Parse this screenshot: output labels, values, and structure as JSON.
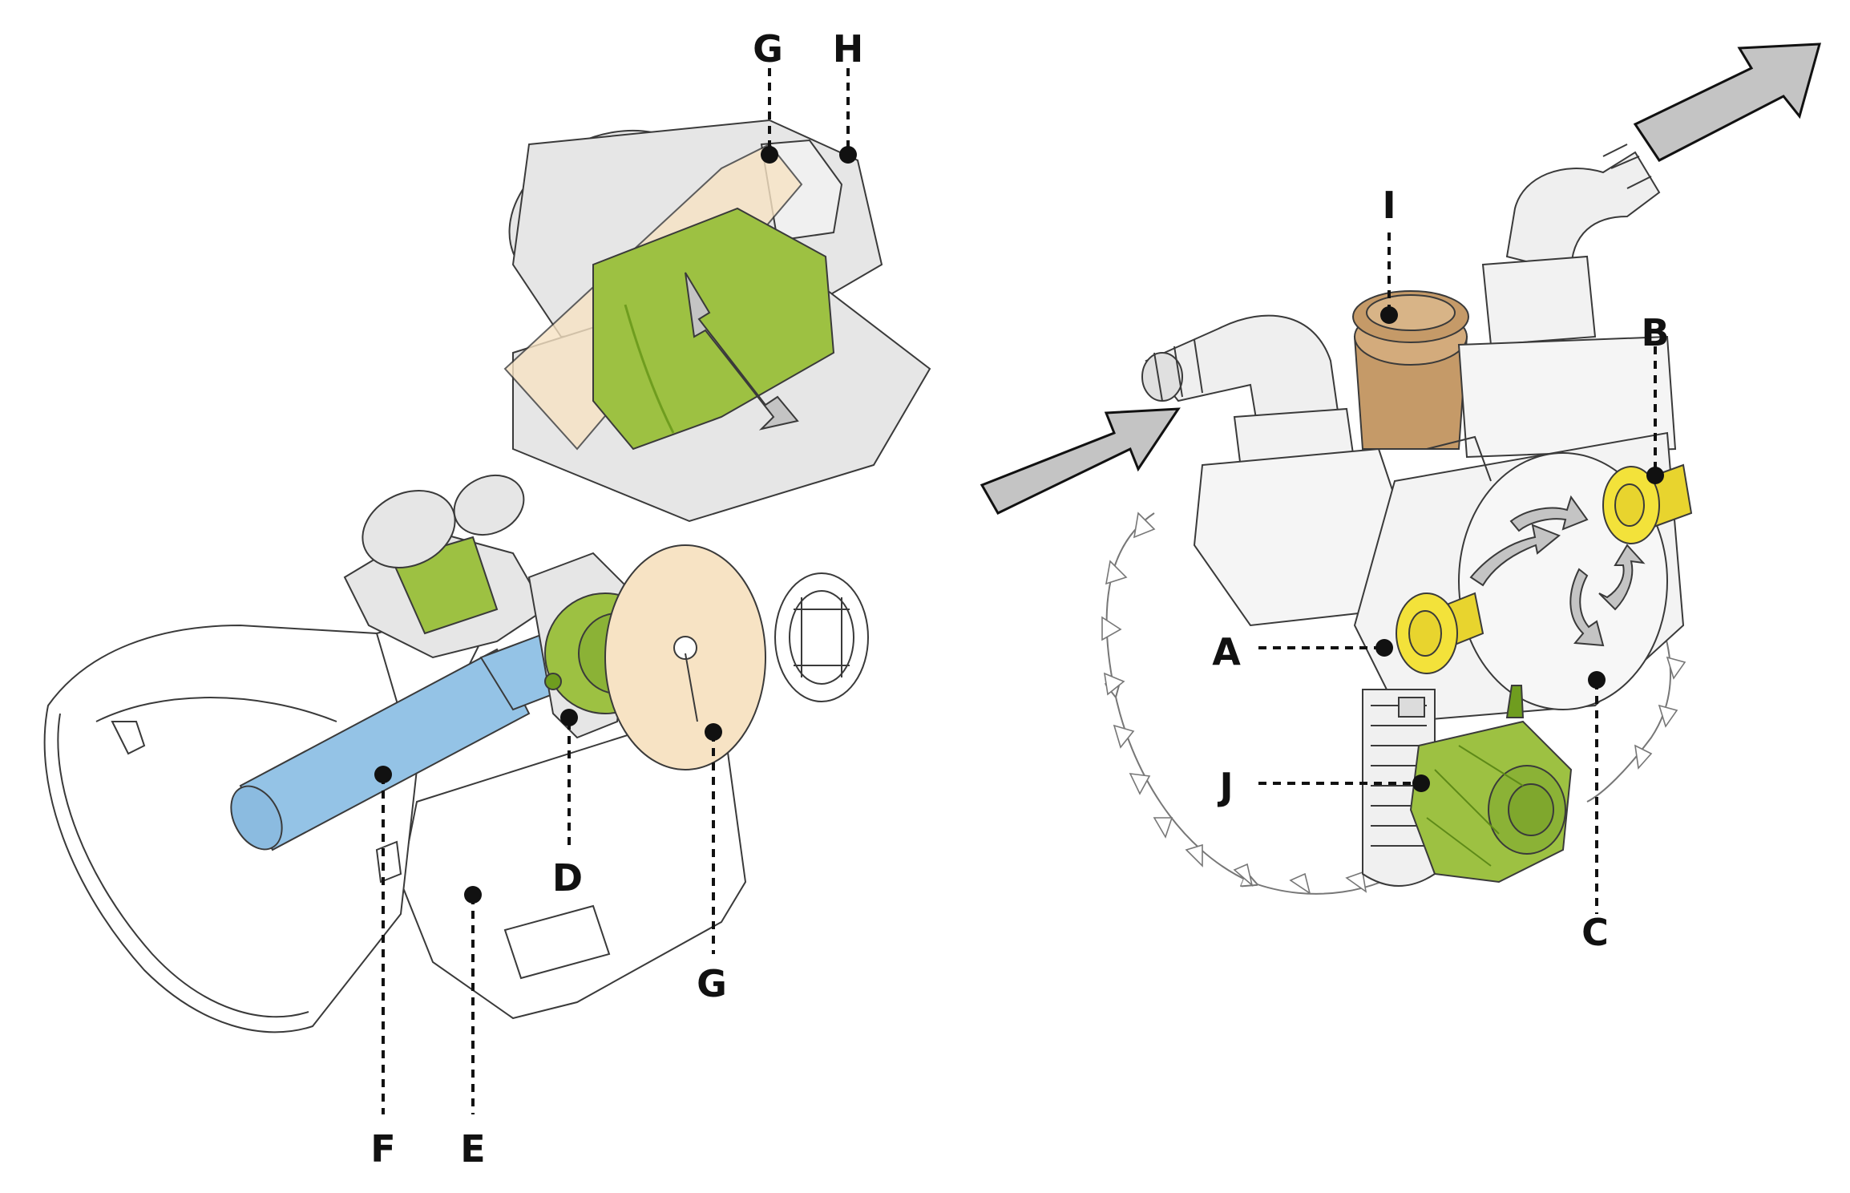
{
  "colors": {
    "outline": "#3a3a3a",
    "light_gray": "#e6e6e6",
    "mid_gray": "#cfcfcf",
    "green": "#9dc142",
    "dark_green": "#6f9d1f",
    "blue": "#94c3e6",
    "peach": "#f7e3c4",
    "yellow": "#f3e23a",
    "brown": "#c59a68",
    "arrow_gray": "#c4c4c4"
  },
  "labels": {
    "g_top": "G",
    "h_top": "H",
    "d": "D",
    "g_bottom": "G",
    "f": "F",
    "e": "E",
    "i": "I",
    "b": "B",
    "a": "A",
    "j": "J",
    "c": "C"
  }
}
